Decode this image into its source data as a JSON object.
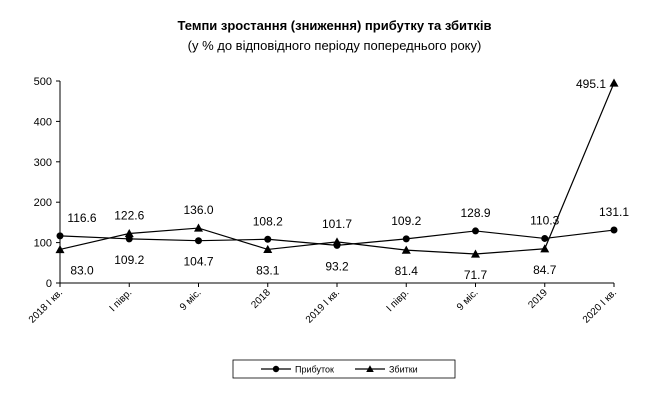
{
  "chart_data": {
    "type": "line",
    "title": "Темпи зростання (зниження) прибутку та збитків",
    "subtitle": "(у % до відповідного періоду попереднього  року)",
    "categories": [
      "2018 І кв.",
      "І півр.",
      "9 міс.",
      "2018",
      "2019 І кв.",
      "І півр.",
      "9 міс.",
      "2019",
      "2020 І кв."
    ],
    "ylim": [
      0,
      500
    ],
    "yticks": [
      0,
      100,
      200,
      300,
      400,
      500
    ],
    "series": [
      {
        "name": "Прибуток",
        "marker": "circle",
        "values": [
          116.6,
          109.2,
          104.7,
          108.2,
          93.2,
          109.2,
          128.9,
          110.3,
          131.1
        ],
        "labels": [
          "116.6",
          "109.2",
          "104.7",
          "108.2",
          "93.2",
          "109.2",
          "128.9",
          "110.3",
          "131.1"
        ],
        "label_pos": [
          "above",
          "below",
          "below",
          "above",
          "below",
          "above",
          "above",
          "above",
          "above"
        ]
      },
      {
        "name": "Збитки",
        "marker": "triangle",
        "values": [
          83.0,
          122.6,
          136.0,
          83.1,
          101.7,
          81.4,
          71.7,
          84.7,
          495.1
        ],
        "labels": [
          "83.0",
          "122.6",
          "136.0",
          "83.1",
          "101.7",
          "81.4",
          "71.7",
          "84.7",
          "495.1"
        ],
        "label_pos": [
          "below",
          "above",
          "above",
          "below",
          "above",
          "below",
          "below",
          "below",
          "left"
        ]
      }
    ],
    "legend": {
      "position": "bottom-center"
    },
    "colors": {
      "line": "#000000",
      "axis": "#000000",
      "grid": "#ffffff"
    }
  }
}
